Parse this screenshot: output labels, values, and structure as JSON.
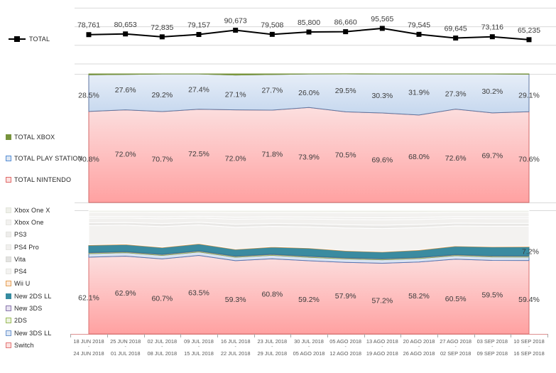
{
  "chart_data": [
    {
      "type": "line",
      "name": "total-units-per-week",
      "series_name": "TOTAL",
      "color": "#000000",
      "values": [
        78761,
        80653,
        72835,
        79157,
        90673,
        79508,
        85800,
        86660,
        95565,
        79545,
        69645,
        73116,
        65235
      ],
      "labels": [
        "78,761",
        "80,653",
        "72,835",
        "79,157",
        "90,673",
        "79,508",
        "85,800",
        "86,660",
        "95,565",
        "79,545",
        "69,645",
        "73,116",
        "65,235"
      ],
      "ylim": [
        0,
        168000
      ],
      "gridline_values": [
        0,
        50000,
        100000,
        150000
      ],
      "grid": "horizontal",
      "legend_position": "left"
    },
    {
      "type": "area",
      "name": "brand-share-percent",
      "stacked_percent": true,
      "legend_position": "left",
      "legend_order": [
        "TOTAL XBOX",
        "TOTAL PLAY STATION",
        "TOTAL NINTENDO"
      ],
      "series": [
        {
          "name": "TOTAL NINTENDO",
          "values": [
            70.8,
            72.0,
            70.7,
            72.5,
            72.0,
            71.8,
            73.9,
            70.5,
            69.6,
            68.0,
            72.6,
            69.7,
            70.6
          ],
          "show_labels": "all",
          "fill_top": "#fcdfdf",
          "fill_bottom": "#ffa1a1",
          "border": "#d26a6a",
          "legend_fill": "#fbe0df",
          "legend_border": "#e06968"
        },
        {
          "name": "TOTAL PLAY STATION",
          "values": [
            28.5,
            27.6,
            29.2,
            27.4,
            27.1,
            27.7,
            26.0,
            29.5,
            30.3,
            31.9,
            27.3,
            30.2,
            29.1
          ],
          "show_labels": "all",
          "fill_top": "#e7eef8",
          "fill_bottom": "#c5d7ee",
          "border": "#5f76a0",
          "legend_fill": "#dce6f2",
          "legend_border": "#558ed5"
        },
        {
          "name": "TOTAL XBOX",
          "values": [
            0.7,
            0.4,
            0.1,
            0.1,
            0.9,
            0.5,
            0.1,
            0.1,
            0.1,
            0.1,
            0.1,
            0.1,
            0.3
          ],
          "estimated": true,
          "show_labels": "none",
          "fill_flat": "#86a041",
          "border": "#77933c",
          "legend_fill": "#77933c",
          "legend_border": "#77933c"
        }
      ]
    },
    {
      "type": "area",
      "name": "console-share-percent",
      "stacked_percent": true,
      "legend_position": "left",
      "legend_order": [
        "Xbox One X",
        "Xbox One",
        "PS3",
        "PS4 Pro",
        "Vita",
        "PS4",
        "Wii U",
        "New 2DS LL",
        "New 3DS",
        "2DS",
        "New 3DS LL",
        "Switch"
      ],
      "series": [
        {
          "name": "Switch",
          "values": [
            62.1,
            62.9,
            60.7,
            63.5,
            59.3,
            60.8,
            59.2,
            57.9,
            57.2,
            58.2,
            60.5,
            59.5,
            59.4
          ],
          "show_labels": "all",
          "fill_top": "#fcdfdf",
          "fill_bottom": "#ffa1a1",
          "border": "#d87070",
          "legend_fill": "#fbe0df",
          "legend_border": "#e47777"
        },
        {
          "name": "New 3DS LL",
          "values": [
            2.8,
            2.8,
            2.8,
            2.8,
            2.8,
            2.8,
            2.8,
            2.8,
            2.8,
            2.8,
            2.8,
            2.8,
            2.8
          ],
          "estimated": true,
          "show_labels": "none",
          "fill_flat": "#d9e3f2",
          "border": "#5477b5",
          "legend_fill": "#dde7f4",
          "legend_border": "#6d96cf"
        },
        {
          "name": "2DS",
          "values": [
            0.7,
            0.7,
            0.7,
            0.7,
            0.7,
            0.7,
            0.7,
            0.7,
            0.7,
            0.7,
            0.7,
            0.7,
            0.7
          ],
          "estimated": true,
          "show_labels": "none",
          "fill_flat": "#ecf2df",
          "border": "#94ad56",
          "legend_fill": "#ecf2df",
          "legend_border": "#9bbb59"
        },
        {
          "name": "New 3DS",
          "values": [
            0.3,
            0.3,
            0.3,
            0.3,
            0.3,
            0.3,
            0.3,
            0.3,
            0.3,
            0.3,
            0.3,
            0.3,
            0.3
          ],
          "estimated": true,
          "show_labels": "none",
          "fill_flat": "#e6e1ef",
          "border": "#8064a2",
          "legend_fill": "#e6e1ef",
          "legend_border": "#8976ac"
        },
        {
          "name": "New 2DS LL",
          "values": [
            5.8,
            5.6,
            5.3,
            5.5,
            5.2,
            5.6,
            6.3,
            5.4,
            5.2,
            5.7,
            6.6,
            7.0,
            7.2
          ],
          "estimated": true,
          "show_labels": "last",
          "fill_flat": "#3b8ba0",
          "border": "#2e7d92",
          "legend_fill": "#358ba0",
          "legend_border": "#358ba0"
        },
        {
          "name": "Wii U",
          "values": [
            0.4,
            0.4,
            0.4,
            0.4,
            0.4,
            0.4,
            0.4,
            0.4,
            0.4,
            0.4,
            0.4,
            0.4,
            0.4
          ],
          "estimated": true,
          "show_labels": "none",
          "fill_flat": "#fdeada",
          "border": "#d99a4e",
          "legend_fill": "#fdeada",
          "legend_border": "#e3a157"
        },
        {
          "name": "PS4",
          "remainder_share": 0.56,
          "estimated": true,
          "show_labels": "none",
          "fill_flat": "#f3f2f0",
          "border": "#ffffff",
          "legend_fill": "#f3f2f0",
          "legend_border": "#e6e6e2"
        },
        {
          "name": "Vita",
          "remainder_share": 0.08,
          "estimated": true,
          "show_labels": "none",
          "fill_flat": "#e9e8e6",
          "border": "#ffffff",
          "legend_fill": "#e3e3e1",
          "legend_border": "#d9d9d5"
        },
        {
          "name": "PS4 Pro",
          "remainder_share": 0.13,
          "estimated": true,
          "show_labels": "none",
          "fill_flat": "#f1f0ee",
          "border": "#ffffff",
          "legend_fill": "#f1f0ee",
          "legend_border": "#e6e6e2"
        },
        {
          "name": "PS3",
          "remainder_share": 0.05,
          "estimated": true,
          "show_labels": "none",
          "fill_flat": "#eeedeb",
          "border": "#ffffff",
          "legend_fill": "#eeedeb",
          "legend_border": "#e4e4e0"
        },
        {
          "name": "Xbox One",
          "remainder_share": 0.12,
          "estimated": true,
          "show_labels": "none",
          "fill_flat": "#f2f1ef",
          "border": "#ffffff",
          "legend_fill": "#f2f1ef",
          "legend_border": "#e6e6e2"
        },
        {
          "name": "Xbox One X",
          "remainder_share": 0.06,
          "estimated": true,
          "show_labels": "none",
          "fill_flat": "#eff0ea",
          "border": "#ffffff",
          "legend_fill": "#eff0ea",
          "legend_border": "#e2e4da"
        }
      ]
    }
  ],
  "x_axis": {
    "separator": "-",
    "weeks": [
      {
        "from": "18 JUN 2018",
        "to": "24 JUN 2018"
      },
      {
        "from": "25 JUN 2018",
        "to": "01 JUL 2018"
      },
      {
        "from": "02 JUL 2018",
        "to": "08 JUL 2018"
      },
      {
        "from": "09 JUL 2018",
        "to": "15 JUL 2018"
      },
      {
        "from": "16 JUL 2018",
        "to": "22 JUL 2018"
      },
      {
        "from": "23 JUL 2018",
        "to": "29 JUL 2018"
      },
      {
        "from": "30 JUL 2018",
        "to": "05 AGO 2018"
      },
      {
        "from": "05 AGO 2018",
        "to": "12 AGO 2018"
      },
      {
        "from": "13 AGO 2018",
        "to": "19 AGO 2018"
      },
      {
        "from": "20 AGO 2018",
        "to": "26 AGO 2018"
      },
      {
        "from": "27 AGO 2018",
        "to": "02 SEP 2018"
      },
      {
        "from": "03 SEP 2018",
        "to": "09 SEP 2018"
      },
      {
        "from": "10 SEP 2018",
        "to": "16 SEP 2018"
      }
    ]
  },
  "styles": {
    "label_color": "#3a3a3a",
    "gridline_color": "#d9d9d9",
    "axisline_color": "#de8f8f",
    "tick_color": "#a6a6a6",
    "date_color": "#595959"
  }
}
